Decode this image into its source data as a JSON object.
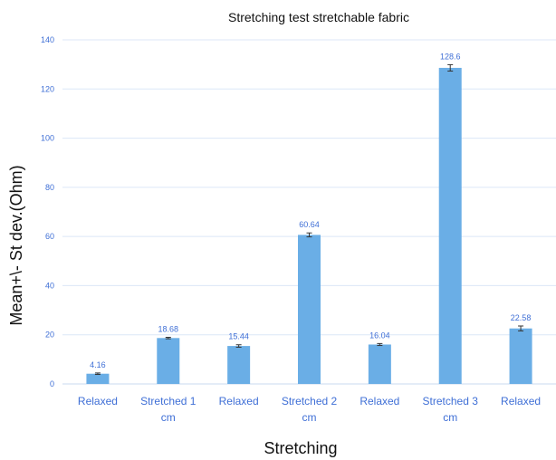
{
  "chart_data": {
    "type": "bar",
    "title": "Stretching test stretchable fabric",
    "xlabel": "Stretching",
    "ylabel": "Mean+\\- St dev.(Ohm)",
    "categories": [
      [
        "Relaxed"
      ],
      [
        "Stretched 1",
        "cm"
      ],
      [
        "Relaxed"
      ],
      [
        "Stretched 2",
        "cm"
      ],
      [
        "Relaxed"
      ],
      [
        "Stretched 3",
        "cm"
      ],
      [
        "Relaxed"
      ]
    ],
    "values": [
      4.16,
      18.68,
      15.44,
      60.64,
      16.04,
      128.6,
      22.58
    ],
    "data_labels": [
      "4.16",
      "18.68",
      "15.44",
      "60.64",
      "16.04",
      "128.6",
      "22.58"
    ],
    "errors": [
      0.3,
      0.3,
      0.5,
      0.8,
      0.4,
      1.3,
      1.0
    ],
    "ylim": [
      0,
      140
    ],
    "yticks": [
      0,
      20,
      40,
      60,
      80,
      100,
      120,
      140
    ],
    "grid": true,
    "legend": "none",
    "bar_color": "#6aaee6"
  }
}
